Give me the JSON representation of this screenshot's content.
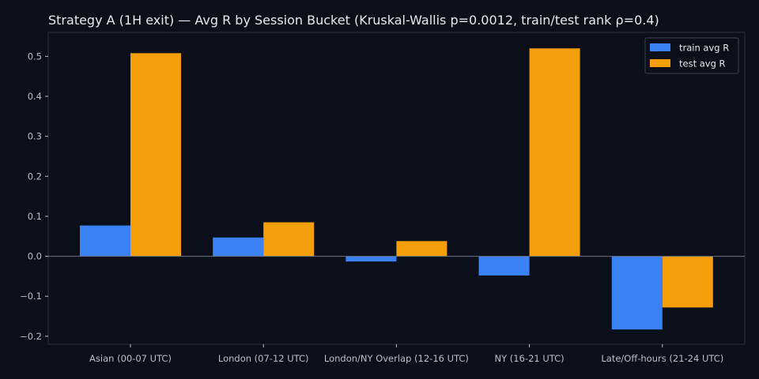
{
  "chart_data": {
    "type": "bar",
    "title": "Strategy A (1H exit) — Avg R by Session Bucket (Kruskal-Wallis p=0.0012, train/test rank ρ=0.4)",
    "xlabel": "",
    "ylabel": "",
    "categories": [
      "Asian (00-07 UTC)",
      "London (07-12 UTC)",
      "London/NY Overlap (12-16 UTC)",
      "NY (16-21 UTC)",
      "Late/Off-hours (21-24 UTC)"
    ],
    "series": [
      {
        "name": "train avg R",
        "color": "#3b82f6",
        "values": [
          0.077,
          0.047,
          -0.013,
          -0.048,
          -0.183
        ]
      },
      {
        "name": "test avg R",
        "color": "#f59e0b",
        "values": [
          0.508,
          0.085,
          0.038,
          0.52,
          -0.128
        ]
      }
    ],
    "ylim": [
      -0.22,
      0.56
    ],
    "yticks": [
      -0.2,
      -0.1,
      0.0,
      0.1,
      0.2,
      0.3,
      0.4,
      0.5
    ],
    "ytick_labels": [
      "−0.2",
      "−0.1",
      "0.0",
      "0.1",
      "0.2",
      "0.3",
      "0.4",
      "0.5"
    ],
    "grid": false,
    "legend_position": "top-right",
    "colors": {
      "background": "#0b0f19",
      "axes_frame": "#2a3040",
      "zero_line": "#6b7280",
      "text": "#e6e9ef",
      "tick_text": "#b8bfcc"
    }
  }
}
